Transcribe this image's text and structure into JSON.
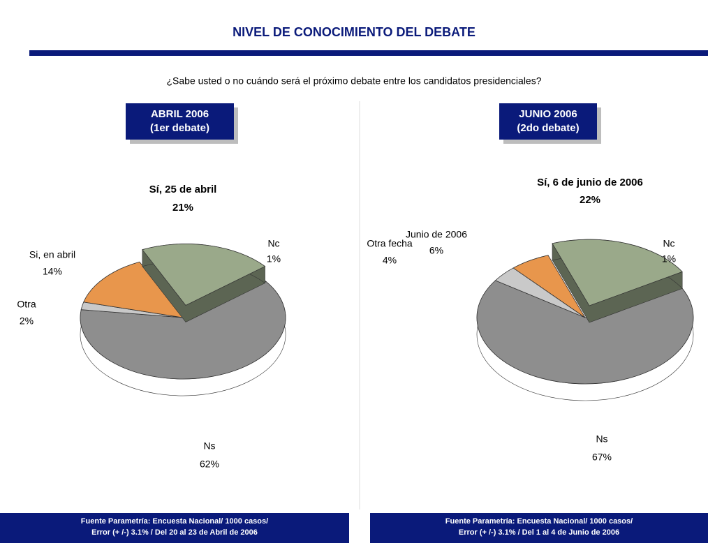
{
  "title": "NIVEL DE CONOCIMIENTO DEL DEBATE",
  "question": "¿Sabe usted o no cuándo será el próximo debate entre los candidatos presidenciales?",
  "chart_data": [
    {
      "type": "pie",
      "title": "ABRIL 2006",
      "subtitle": "(1er debate)",
      "categories": [
        "Sí, 25 de abril",
        "Nc",
        "Ns",
        "Otra",
        "Si, en abril"
      ],
      "values": [
        21,
        1,
        62,
        2,
        14
      ],
      "value_labels": [
        "21%",
        "1%",
        "62%",
        "2%",
        "14%"
      ],
      "colors": [
        "#9aa98a",
        "#6a6a6a",
        "#8e8e8e",
        "#c9c9c9",
        "#e8964c"
      ],
      "explode": 0,
      "source": [
        "Fuente Parametría: Encuesta Nacional/ 1000 casos/",
        "Error (+ /-) 3.1% / Del 20 al 23 de Abril  de 2006"
      ]
    },
    {
      "type": "pie",
      "title": "JUNIO 2006",
      "subtitle": "(2do debate)",
      "categories": [
        "Sí, 6 de junio de 2006",
        "Nc",
        "Ns",
        "Otra fecha",
        "Junio de 2006"
      ],
      "values": [
        22,
        1,
        67,
        4,
        6
      ],
      "value_labels": [
        "22%",
        "1%",
        "67%",
        "4%",
        "6%"
      ],
      "colors": [
        "#9aa98a",
        "#6a6a6a",
        "#8e8e8e",
        "#c9c9c9",
        "#e8964c"
      ],
      "explode": 0,
      "source": [
        "Fuente Parametría: Encuesta Nacional/ 1000 casos/",
        "Error (+ /-) 3.1% / Del 1 al 4 de Junio  de 2006"
      ]
    }
  ]
}
